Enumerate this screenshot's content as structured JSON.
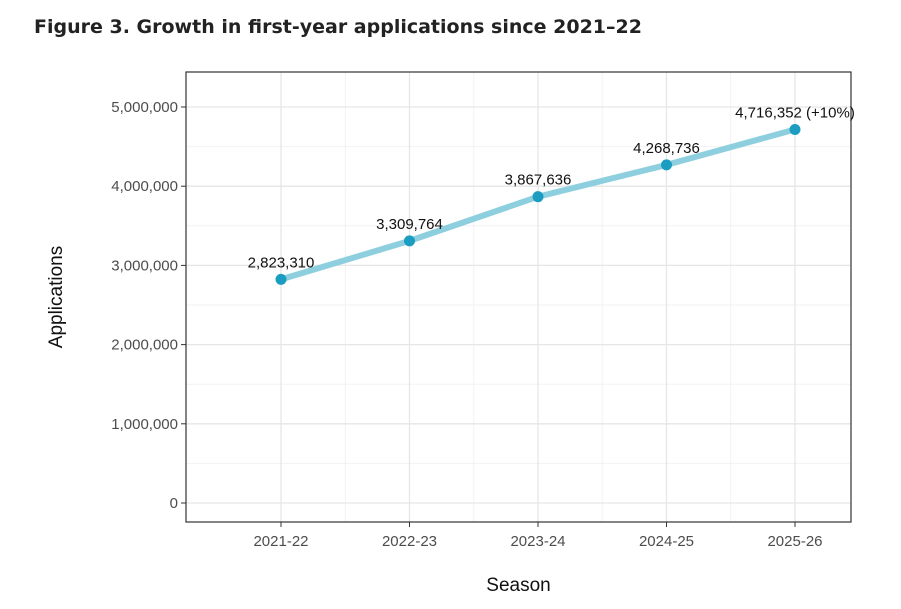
{
  "chart_data": {
    "type": "line",
    "title": "Figure 3. Growth in first-year applications since 2021–22",
    "xlabel": "Season",
    "ylabel": "Applications",
    "categories": [
      "2021-22",
      "2022-23",
      "2023-24",
      "2024-25",
      "2025-26"
    ],
    "values": [
      2823310,
      3309764,
      3867636,
      4268736,
      4716352
    ],
    "data_labels": [
      "2,823,310",
      "3,309,764",
      "3,867,636",
      "4,268,736",
      "4,716,352 (+10%)"
    ],
    "ylim": [
      -250000,
      5450000
    ],
    "yticks": [
      0,
      1000000,
      2000000,
      3000000,
      4000000,
      5000000
    ],
    "ytick_labels": [
      "0",
      "1,000,000",
      "2,000,000",
      "3,000,000",
      "4,000,000",
      "5,000,000"
    ],
    "grid": true,
    "line_color": "#8ecfdf",
    "point_color": "#1a9dc0"
  }
}
